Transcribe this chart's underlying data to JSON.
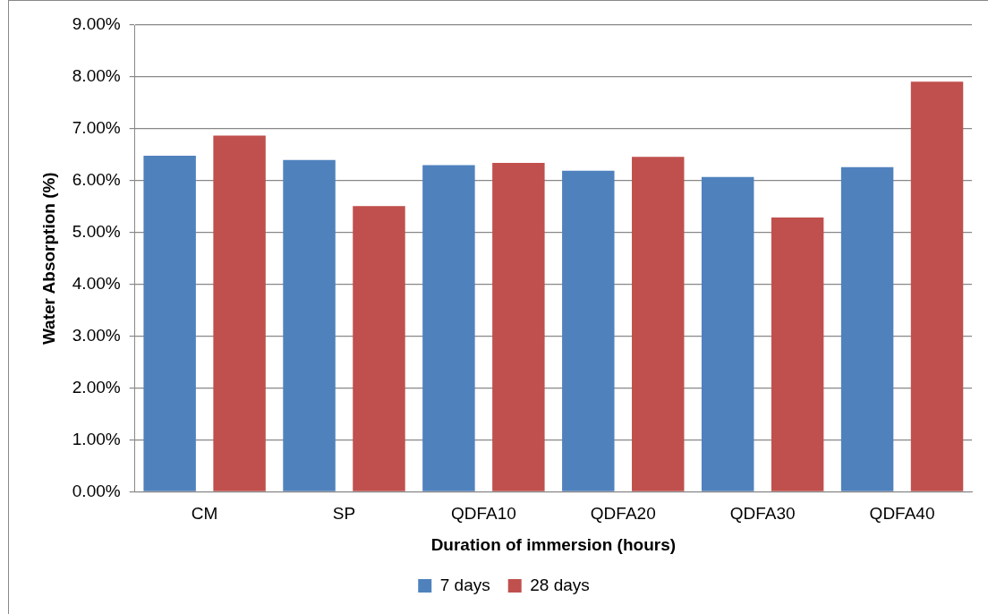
{
  "chart_data": {
    "type": "bar",
    "xlabel": "Duration of immersion (hours)",
    "ylabel": "Water Absorption (%)",
    "categories": [
      "CM",
      "SP",
      "QDFA10",
      "QDFA20",
      "QDFA30",
      "QDFA40"
    ],
    "series": [
      {
        "name": "7 days",
        "color": "#4f81bd",
        "values": [
          6.48,
          6.4,
          6.3,
          6.19,
          6.07,
          6.26
        ]
      },
      {
        "name": "28 days",
        "color": "#c0504d",
        "values": [
          6.87,
          5.51,
          6.34,
          6.46,
          5.29,
          7.91
        ]
      }
    ],
    "ylim": [
      0,
      9
    ],
    "yticks": [
      {
        "value": 0,
        "label": "0.00%"
      },
      {
        "value": 1,
        "label": "1.00%"
      },
      {
        "value": 2,
        "label": "2.00%"
      },
      {
        "value": 3,
        "label": "3.00%"
      },
      {
        "value": 4,
        "label": "4.00%"
      },
      {
        "value": 5,
        "label": "5.00%"
      },
      {
        "value": 6,
        "label": "6.00%"
      },
      {
        "value": 7,
        "label": "7.00%"
      },
      {
        "value": 8,
        "label": "8.00%"
      },
      {
        "value": 9,
        "label": "9.00%"
      }
    ],
    "grid": "y",
    "legend": "bottom"
  }
}
